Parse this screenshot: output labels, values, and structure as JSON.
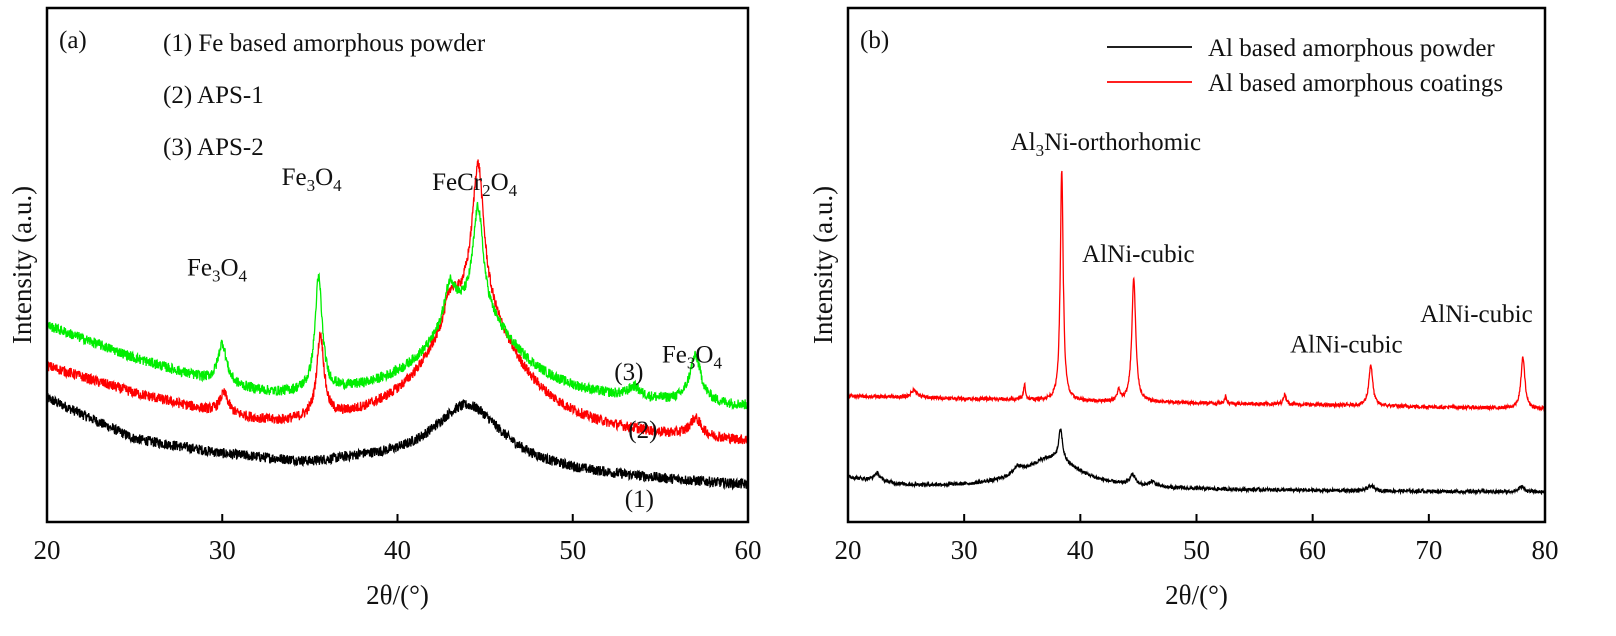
{
  "chart_data": [
    {
      "type": "line",
      "panel_label": "(a)",
      "xlabel": "2θ/(°)",
      "ylabel": "Intensity (a.u.)",
      "xlim": [
        20,
        60
      ],
      "ylim": [
        0,
        100
      ],
      "xticks": [
        20,
        30,
        40,
        50,
        60
      ],
      "grid": false,
      "legend_placement": "top-left",
      "legend_entries": [
        "(1) Fe based amorphous powder",
        "(2) APS-1",
        "(3) APS-2"
      ],
      "series": [
        {
          "name": "(1) Fe based amorphous powder",
          "label": "(1)",
          "color": "#000000",
          "noise": 1.0,
          "baseline": [
            [
              20,
              24
            ],
            [
              25,
              16
            ],
            [
              30,
              13
            ],
            [
              35,
              11
            ],
            [
              38,
              11.5
            ],
            [
              60,
              7
            ]
          ],
          "peaks": [
            {
              "x": 44,
              "h": 12.5,
              "w": 2.5
            }
          ]
        },
        {
          "name": "(2) APS-1",
          "label": "(2)",
          "color": "#ff0000",
          "noise": 1.0,
          "baseline": [
            [
              20,
              30
            ],
            [
              25,
              24.5
            ],
            [
              30,
              20
            ],
            [
              33,
              18
            ],
            [
              38,
              17.5
            ],
            [
              60,
              15
            ]
          ],
          "peaks": [
            {
              "x": 44.3,
              "h": 26,
              "w": 3
            },
            {
              "x": 30.1,
              "h": 4,
              "w": 0.3
            },
            {
              "x": 35.6,
              "h": 16,
              "w": 0.25
            },
            {
              "x": 43,
              "h": 5,
              "w": 0.4
            },
            {
              "x": 44.6,
              "h": 27,
              "w": 0.4
            },
            {
              "x": 57,
              "h": 3.5,
              "w": 0.4
            }
          ]
        },
        {
          "name": "(3) APS-2",
          "label": "(3)",
          "color": "#00ee00",
          "noise": 1.0,
          "baseline": [
            [
              20,
              38
            ],
            [
              25,
              31.5
            ],
            [
              30,
              26
            ],
            [
              33,
              24
            ],
            [
              38,
              23.5
            ],
            [
              55,
              22.5
            ],
            [
              60,
              22
            ]
          ],
          "peaks": [
            {
              "x": 44.3,
              "h": 18,
              "w": 3
            },
            {
              "x": 30,
              "h": 8,
              "w": 0.3
            },
            {
              "x": 35.5,
              "h": 22,
              "w": 0.25
            },
            {
              "x": 43,
              "h": 8,
              "w": 0.4
            },
            {
              "x": 44.6,
              "h": 20,
              "w": 0.35
            },
            {
              "x": 53.5,
              "h": 2,
              "w": 0.4
            },
            {
              "x": 57,
              "h": 9,
              "w": 0.4
            }
          ]
        }
      ],
      "annotations": [
        {
          "x": 29.7,
          "y": 48,
          "parts": [
            {
              "t": "Fe"
            },
            {
              "t": "3",
              "sub": true
            },
            {
              "t": "O"
            },
            {
              "t": "4",
              "sub": true
            }
          ]
        },
        {
          "x": 35.1,
          "y": 65.6,
          "parts": [
            {
              "t": "Fe"
            },
            {
              "t": "3",
              "sub": true
            },
            {
              "t": "O"
            },
            {
              "t": "4",
              "sub": true
            }
          ]
        },
        {
          "x": 44.4,
          "y": 64.6,
          "parts": [
            {
              "t": "FeCr"
            },
            {
              "t": "2",
              "sub": true
            },
            {
              "t": "O"
            },
            {
              "t": "4",
              "sub": true
            }
          ]
        },
        {
          "x": 56.8,
          "y": 31,
          "parts": [
            {
              "t": "Fe"
            },
            {
              "t": "3",
              "sub": true
            },
            {
              "t": "O"
            },
            {
              "t": "4",
              "sub": true
            }
          ]
        },
        {
          "x": 53.2,
          "y": 27.6,
          "parts": [
            {
              "t": "(3)"
            }
          ]
        },
        {
          "x": 54.0,
          "y": 16.3,
          "parts": [
            {
              "t": "(2)"
            }
          ]
        },
        {
          "x": 53.8,
          "y": 2.9,
          "parts": [
            {
              "t": "(1)"
            }
          ]
        }
      ]
    },
    {
      "type": "line",
      "panel_label": "(b)",
      "xlabel": "2θ/(°)",
      "ylabel": "Intensity (a.u.)",
      "xlim": [
        20,
        80
      ],
      "ylim": [
        0,
        100
      ],
      "xticks": [
        20,
        30,
        40,
        50,
        60,
        70,
        80
      ],
      "grid": false,
      "legend_placement": "top-right",
      "legend_entries": [
        "Al based amorphous powder",
        "Al based amorphous coatings"
      ],
      "series": [
        {
          "name": "Al based amorphous powder",
          "color": "#000000",
          "noise": 0.35,
          "baseline": [
            [
              20,
              8.6
            ],
            [
              25,
              7
            ],
            [
              30,
              6.6
            ],
            [
              50,
              6.2
            ],
            [
              80,
              5.8
            ]
          ],
          "peaks": [
            {
              "x": 37.5,
              "h": 6,
              "w": 3
            },
            {
              "x": 22.5,
              "h": 1.5,
              "w": 0.3
            },
            {
              "x": 34.6,
              "h": 1.5,
              "w": 0.4
            },
            {
              "x": 38.3,
              "h": 6,
              "w": 0.2
            },
            {
              "x": 44.5,
              "h": 2,
              "w": 0.3
            },
            {
              "x": 46.2,
              "h": 1,
              "w": 0.3
            },
            {
              "x": 65,
              "h": 1,
              "w": 0.3
            },
            {
              "x": 78,
              "h": 1,
              "w": 0.3
            }
          ]
        },
        {
          "name": "Al based amorphous coatings",
          "color": "#ff0000",
          "noise": 0.35,
          "baseline": [
            [
              20,
              24.5
            ],
            [
              40,
              23.5
            ],
            [
              60,
              22.8
            ],
            [
              80,
              22
            ]
          ],
          "peaks": [
            {
              "x": 25.7,
              "h": 1.5,
              "w": 0.3
            },
            {
              "x": 35.2,
              "h": 3,
              "w": 0.1
            },
            {
              "x": 38.4,
              "h": 45,
              "w": 0.15
            },
            {
              "x": 43.3,
              "h": 2,
              "w": 0.15
            },
            {
              "x": 44.6,
              "h": 24,
              "w": 0.2
            },
            {
              "x": 52.5,
              "h": 1.5,
              "w": 0.1
            },
            {
              "x": 57.6,
              "h": 2,
              "w": 0.15
            },
            {
              "x": 65,
              "h": 8,
              "w": 0.2
            },
            {
              "x": 78.1,
              "h": 10,
              "w": 0.2
            }
          ]
        }
      ],
      "annotations": [
        {
          "x": 42.2,
          "y": 72.4,
          "parts": [
            {
              "t": "Al"
            },
            {
              "t": "3",
              "sub": true
            },
            {
              "t": "Ni-orthorhomic"
            }
          ]
        },
        {
          "x": 45.0,
          "y": 50.6,
          "parts": [
            {
              "t": "AlNi-cubic"
            }
          ]
        },
        {
          "x": 62.9,
          "y": 33,
          "parts": [
            {
              "t": "AlNi-cubic"
            }
          ]
        },
        {
          "x": 74.1,
          "y": 38.9,
          "parts": [
            {
              "t": "AlNi-cubic"
            }
          ]
        }
      ]
    }
  ]
}
